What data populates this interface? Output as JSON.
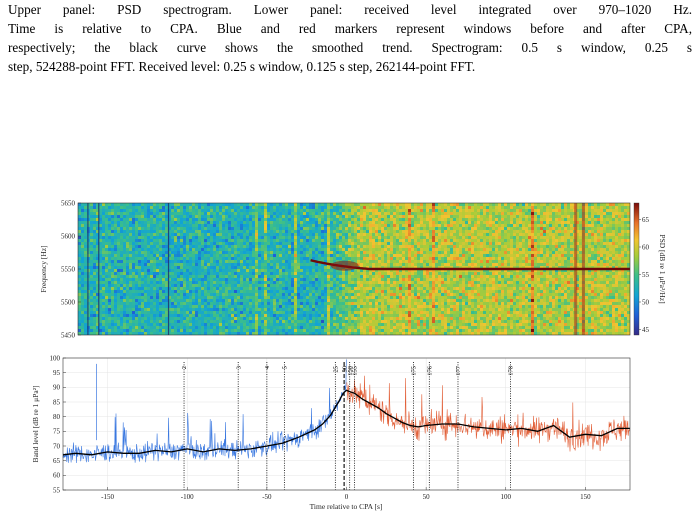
{
  "caption": {
    "lines": [
      "Upper panel: PSD spectrogram. Lower panel: received level integrated over 970–1020 Hz.",
      "Time is relative to CPA. Blue and red markers represent windows before and after CPA,",
      "respectively; the black curve shows the smoothed trend. Spectrogram: 0.5 s window, 0.25 s",
      "step, 524288-point FFT. Received level: 0.25 s window, 0.125 s step, 262144-point FFT."
    ]
  },
  "colors": {
    "before_cpa": "#3a78e0",
    "after_cpa": "#e2613a",
    "trend": "#000000"
  },
  "chart_data": [
    {
      "type": "heatmap",
      "ylabel": "Frequency [Hz]",
      "ylim": [
        5450,
        5650
      ],
      "y_ticks": [
        "5450",
        "5500",
        "5550",
        "5600",
        "5650"
      ],
      "colorbar": {
        "label": "PSD [dB re 1 μPa²/Hz]",
        "range": [
          44,
          68
        ],
        "ticks": [
          "45",
          "50",
          "55",
          "60",
          "65"
        ],
        "colormap": "parula-jet"
      },
      "xlim": [
        -178,
        178
      ],
      "tonal_line": {
        "frequency": 5550,
        "starts_at": -20
      },
      "noise_shift": "blue-green before CPA, orange-red after CPA"
    },
    {
      "type": "scatter",
      "xlabel": "Time relative to CPA [s]",
      "ylabel": "Band level [dB re 1 μPa²]",
      "xlim": [
        -178,
        178
      ],
      "ylim": [
        55,
        100
      ],
      "x_ticks": [
        "-150",
        "-100",
        "-50",
        "0",
        "50",
        "100",
        "150"
      ],
      "y_ticks": [
        "55",
        "60",
        "65",
        "70",
        "75",
        "80",
        "85",
        "90",
        "95",
        "100"
      ],
      "series": [
        {
          "name": "",
          "color": "#3a78e0",
          "x_range": [
            -178,
            0
          ]
        },
        {
          "name": "",
          "color": "#e2613a",
          "x_range": [
            0,
            178
          ]
        }
      ],
      "trend": {
        "x": [
          -178,
          -170,
          -160,
          -150,
          -140,
          -130,
          -120,
          -110,
          -100,
          -90,
          -80,
          -70,
          -60,
          -50,
          -40,
          -30,
          -20,
          -15,
          -10,
          -5,
          -2,
          0,
          2,
          5,
          10,
          15,
          20,
          25,
          30,
          35,
          40,
          45,
          50,
          60,
          70,
          80,
          90,
          100,
          110,
          120,
          130,
          140,
          150,
          160,
          170,
          178
        ],
        "y": [
          67,
          67.5,
          67,
          68,
          67.5,
          67.5,
          68.5,
          68,
          69,
          68,
          69,
          68.5,
          69,
          70,
          71,
          73,
          75.5,
          77.5,
          80.5,
          85,
          88,
          89,
          88.5,
          88,
          86,
          84.5,
          83,
          81,
          79.5,
          78,
          77,
          76.5,
          77,
          77.5,
          77.5,
          76.5,
          76,
          75.5,
          76,
          75,
          77,
          73,
          74,
          73.5,
          76,
          76
        ]
      },
      "markers": [
        {
          "label": "2",
          "x": -102,
          "style": "dotted"
        },
        {
          "label": "3",
          "x": -68,
          "style": "dotted"
        },
        {
          "label": "4",
          "x": -50,
          "style": "dotted"
        },
        {
          "label": "5",
          "x": -39,
          "style": "dotted"
        },
        {
          "label": "25",
          "x": -7,
          "style": "dotted"
        },
        {
          "label": "50",
          "x": -1.5,
          "style": "dashed"
        },
        {
          "label": "150",
          "x": 2,
          "style": "dotted"
        },
        {
          "label": "155",
          "x": 5,
          "style": "dotted"
        },
        {
          "label": "175",
          "x": 42,
          "style": "dotted"
        },
        {
          "label": "176",
          "x": 52,
          "style": "dotted"
        },
        {
          "label": "177",
          "x": 70,
          "style": "dotted"
        },
        {
          "label": "178",
          "x": 103,
          "style": "dotted"
        }
      ]
    }
  ]
}
